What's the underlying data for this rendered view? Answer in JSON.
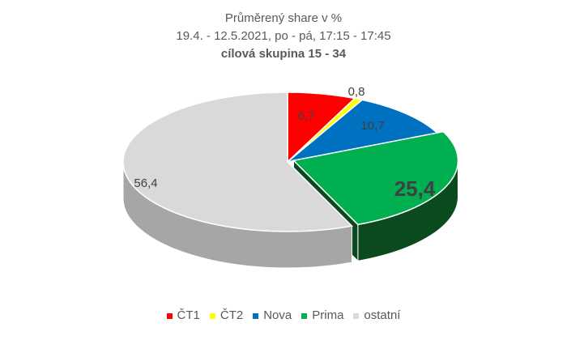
{
  "chart_data": {
    "type": "pie",
    "style": "3d",
    "title": "Průměrený share v %",
    "subtitle": "19.4. - 12.5.2021, po - pá, 17:15 - 17:45",
    "subtitle2": "cílová skupina 15 - 34",
    "legend_position": "bottom",
    "slices": [
      {
        "name": "ČT1",
        "value": 6.7,
        "label": "6,7",
        "color": "#ff0000",
        "side": "#a00000"
      },
      {
        "name": "ČT2",
        "value": 0.8,
        "label": "0,8",
        "color": "#ffff00",
        "side": "#a0a000"
      },
      {
        "name": "Nova",
        "value": 10.7,
        "label": "10,7",
        "color": "#0070c0",
        "side": "#003d6b"
      },
      {
        "name": "Prima",
        "value": 25.4,
        "label": "25,4",
        "color": "#00b050",
        "side": "#0a4a1e",
        "exploded": true
      },
      {
        "name": "ostatní",
        "value": 56.4,
        "label": "56,4",
        "color": "#d9d9d9",
        "side": "#a6a6a6"
      }
    ]
  }
}
